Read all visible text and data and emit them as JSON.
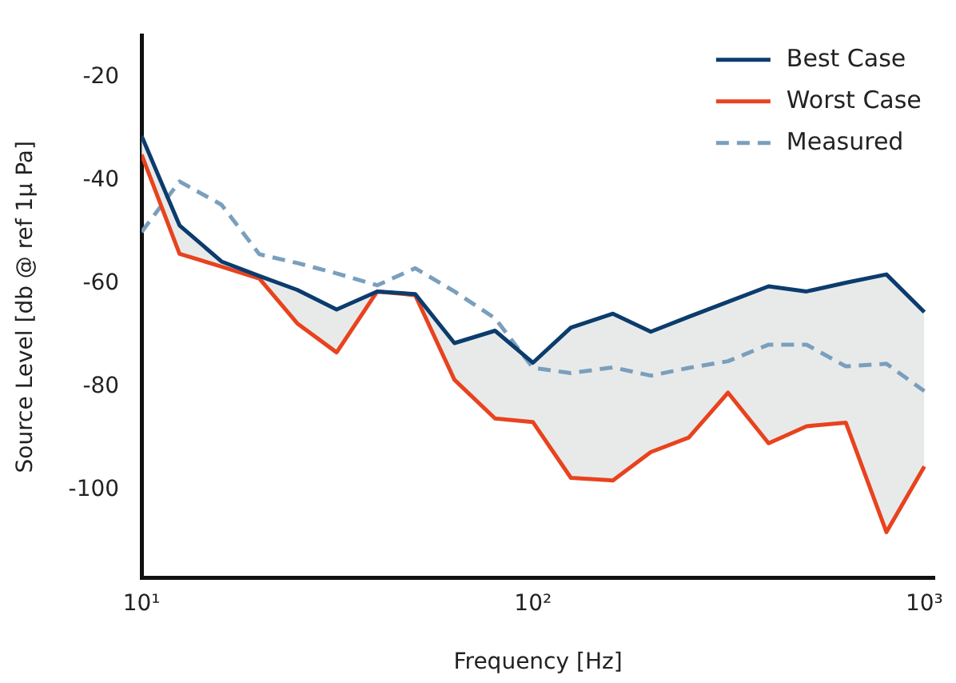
{
  "chart_data": {
    "type": "line",
    "xlabel": "Frequency [Hz]",
    "ylabel": "Source Level [db @ ref 1μ Pa]",
    "x": [
      10,
      12.5,
      16,
      20,
      25,
      31.5,
      40,
      50,
      63,
      80,
      100,
      125,
      160,
      200,
      250,
      315,
      400,
      500,
      630,
      800,
      1000
    ],
    "series": [
      {
        "name": "Best Case",
        "color": "#0b3c6d",
        "values": [
          -31.4,
          -48.7,
          -55.7,
          -58.5,
          -61.2,
          -65.0,
          -61.5,
          -62.0,
          -71.5,
          -69.1,
          -75.3,
          -68.5,
          -65.8,
          -69.3,
          -66.4,
          -63.5,
          -60.5,
          -61.5,
          -59.8,
          -58.2,
          -65.5
        ]
      },
      {
        "name": "Worst Case",
        "color": "#e8431e",
        "values": [
          -35.0,
          -54.2,
          -56.7,
          -59.0,
          -67.7,
          -73.3,
          -61.5,
          -62.2,
          -78.6,
          -86.1,
          -86.8,
          -97.6,
          -98.1,
          -92.6,
          -89.8,
          -81.1,
          -90.9,
          -87.6,
          -86.9,
          -108.1,
          -95.4
        ]
      },
      {
        "name": "Measured",
        "color": "#7a9fbd",
        "line_style": "dashed",
        "values": [
          -50.0,
          -40.2,
          -44.7,
          -54.3,
          -56.0,
          -58.0,
          -60.3,
          -57.0,
          -61.5,
          -66.7,
          -76.3,
          -77.3,
          -76.2,
          -77.8,
          -76.3,
          -75.0,
          -71.8,
          -71.8,
          -76.0,
          -75.5,
          -80.8
        ],
        "lower": [
          -35.0,
          -54.2,
          -56.7,
          -59.0,
          -67.7,
          -73.3,
          -61.5,
          -62.2,
          -78.6,
          -86.1,
          -86.8,
          -97.6,
          -98.1,
          -92.6,
          -89.8,
          -81.1,
          -90.9,
          -87.6,
          -86.9,
          -108.1,
          -95.4
        ],
        "upper": [
          -31.4,
          -48.7,
          -55.7,
          -58.5,
          -61.2,
          -65.0,
          -61.5,
          -62.0,
          -71.5,
          -69.1,
          -75.3,
          -68.5,
          -65.8,
          -69.3,
          -66.4,
          -63.5,
          -60.5,
          -61.5,
          -59.8,
          -58.2,
          -65.5
        ]
      }
    ],
    "log": "x",
    "xlim": [
      10,
      1060
    ],
    "xticks": [
      {
        "value": 10,
        "label": "10¹"
      },
      {
        "value": 100,
        "label": "10²"
      },
      {
        "value": 1000,
        "label": "10³"
      }
    ],
    "ylim": [
      -117,
      -12
    ],
    "yticks": [
      -20,
      -40,
      -60,
      -80,
      -100
    ],
    "grid": false,
    "legend": "top right",
    "marker": "none",
    "line_style": "solid"
  }
}
